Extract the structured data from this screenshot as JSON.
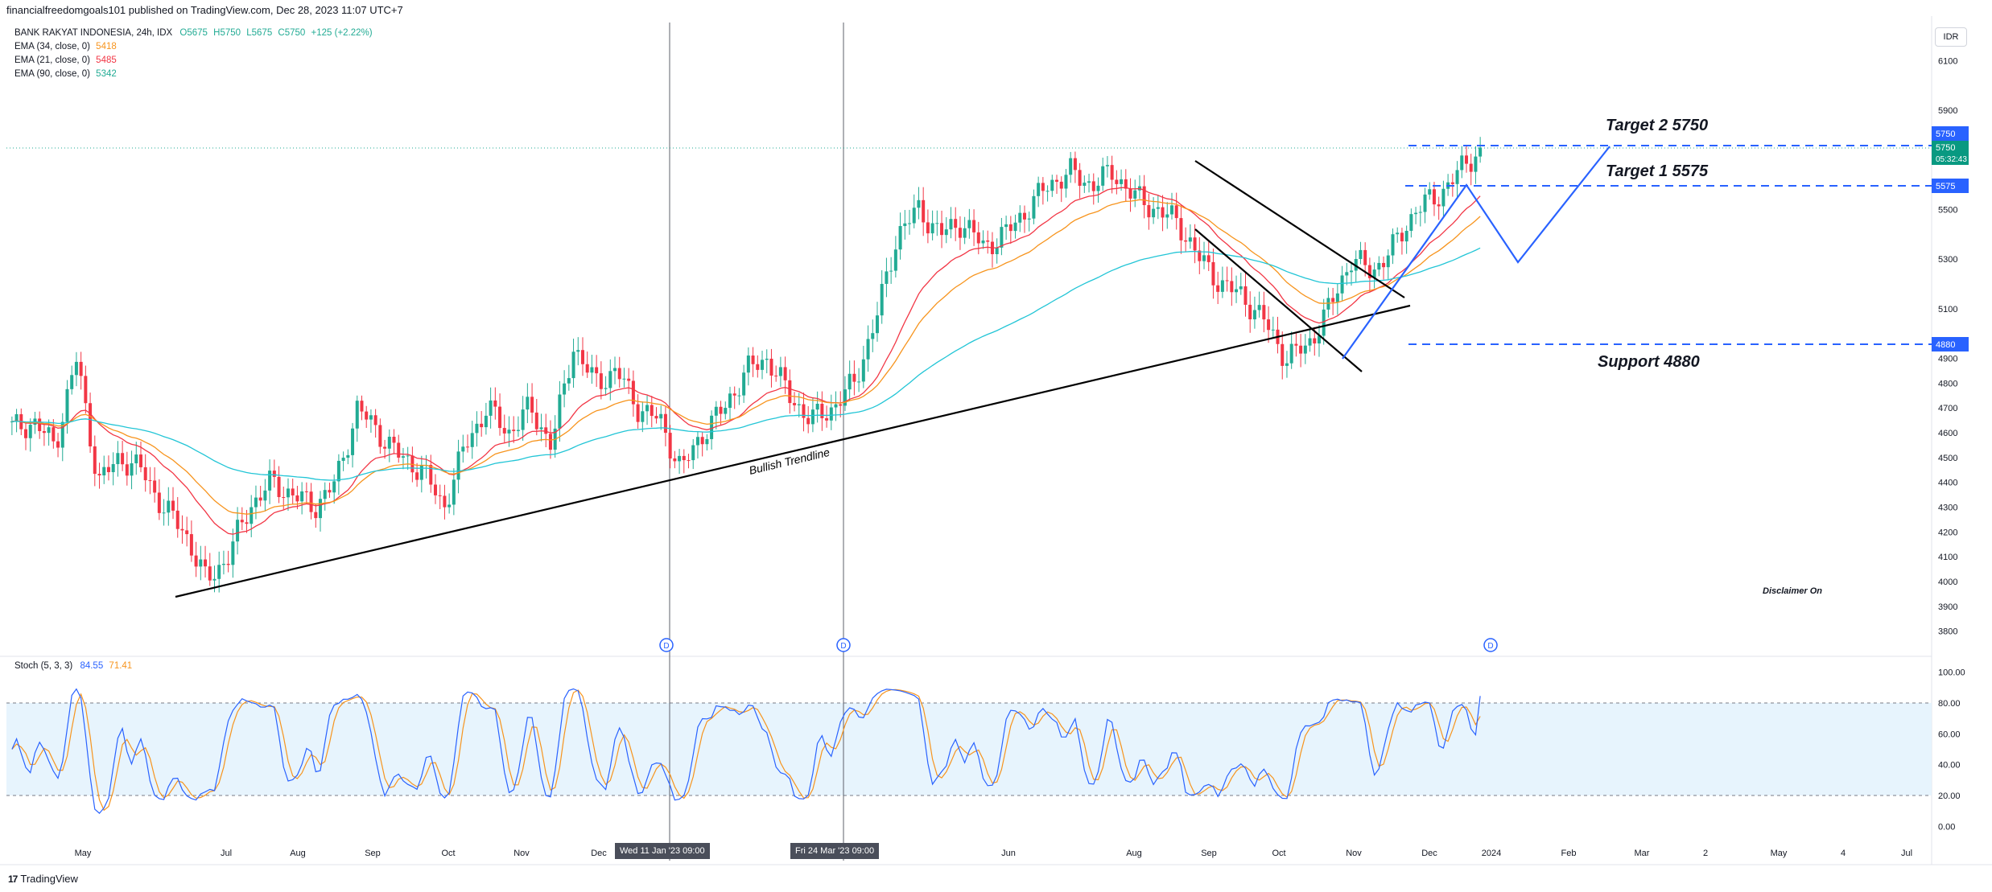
{
  "header": {
    "publisher": "financialfreedomgoals101 published on TradingView.com, Dec 28, 2023 11:07 UTC+7"
  },
  "legend": {
    "symbol": "BANK RAKYAT INDONESIA, 24h, IDX",
    "ohlc": {
      "o": "O5675",
      "h": "H5750",
      "l": "L5675",
      "c": "C5750",
      "change": "+125 (+2.22%)"
    },
    "emas": [
      {
        "label": "EMA (34, close, 0)",
        "value": "5418",
        "color": "#f7941d"
      },
      {
        "label": "EMA (21, close, 0)",
        "value": "5485",
        "color": "#f23645"
      },
      {
        "label": "EMA (90, close, 0)",
        "value": "5342",
        "color": "#22ab94"
      }
    ]
  },
  "currency": "IDR",
  "price_axis": [
    "6100",
    "5900",
    "5700",
    "5500",
    "5300",
    "5100",
    "4900",
    "4800",
    "4700",
    "4600",
    "4500",
    "4400",
    "4300",
    "4200",
    "4100",
    "4000",
    "3900",
    "3800"
  ],
  "price_labels": {
    "last_price": "5750",
    "countdown": "05:32:43",
    "target2_tag": "5750",
    "target1_tag": "5575",
    "support_tag": "4880"
  },
  "annotations": {
    "target2": "Target 2  5750",
    "target1": "Target 1  5575",
    "support": "Support 4880",
    "trendline": "Bullish Trendline",
    "disclaimer": "Disclaimer On"
  },
  "time_axis": [
    "May",
    "Jul",
    "Aug",
    "Sep",
    "Oct",
    "Nov",
    "Dec",
    "Ma",
    "Jun",
    "Aug",
    "Sep",
    "Oct",
    "Nov",
    "Dec",
    "2024",
    "Feb",
    "Mar",
    "2",
    "May",
    "4",
    "Jul"
  ],
  "crosshair_dates": [
    "Wed 11 Jan '23   09:00",
    "Fri 24 Mar '23   09:00"
  ],
  "event_marker": "D",
  "stoch": {
    "label": "Stoch (5, 3, 3)",
    "k": "84.55",
    "d": "71.41",
    "axis": [
      "100.00",
      "80.00",
      "60.00",
      "40.00",
      "20.00",
      "0.00"
    ]
  },
  "footer": {
    "logo": "17",
    "brand": "TradingView"
  },
  "colors": {
    "up": "#22ab94",
    "down": "#f23645",
    "blue": "#2962ff",
    "stoch_k": "#2962ff",
    "stoch_d": "#f7941d"
  },
  "chart_data": {
    "type": "candlestick",
    "title": "BANK RAKYAT INDONESIA, 24h, IDX",
    "ylim": [
      3750,
      6150
    ],
    "series": [
      {
        "name": "Close (approx.)",
        "values": [
          4620,
          4640,
          4550,
          4900,
          4400,
          4500,
          4450,
          4300,
          4200,
          4000,
          4100,
          4300,
          4400,
          4350,
          4300,
          4400,
          4700,
          4600,
          4500,
          4450,
          4300,
          4550,
          4700,
          4600,
          4700,
          4550,
          4950,
          4800,
          4850,
          4700,
          4650,
          4450,
          4600,
          4700,
          4850,
          4900,
          4750,
          4650,
          4700,
          4800,
          5050,
          5400,
          5500,
          5400,
          5450,
          5350,
          5400,
          5500,
          5600,
          5650,
          5600,
          5650,
          5550,
          5500,
          5450,
          5300,
          5200,
          5150,
          5050,
          4900,
          4950,
          5100,
          5300,
          5250,
          5350,
          5500,
          5550,
          5650,
          5750
        ]
      },
      {
        "name": "EMA (34, close, 0)",
        "last": 5418
      },
      {
        "name": "EMA (21, close, 0)",
        "last": 5485
      },
      {
        "name": "EMA (90, close, 0)",
        "last": 5342
      }
    ],
    "levels": {
      "target2": 5750,
      "target1": 5575,
      "support": 4880
    },
    "stochastic": {
      "k_last": 84.55,
      "d_last": 71.41,
      "upper": 80,
      "lower": 20
    }
  }
}
